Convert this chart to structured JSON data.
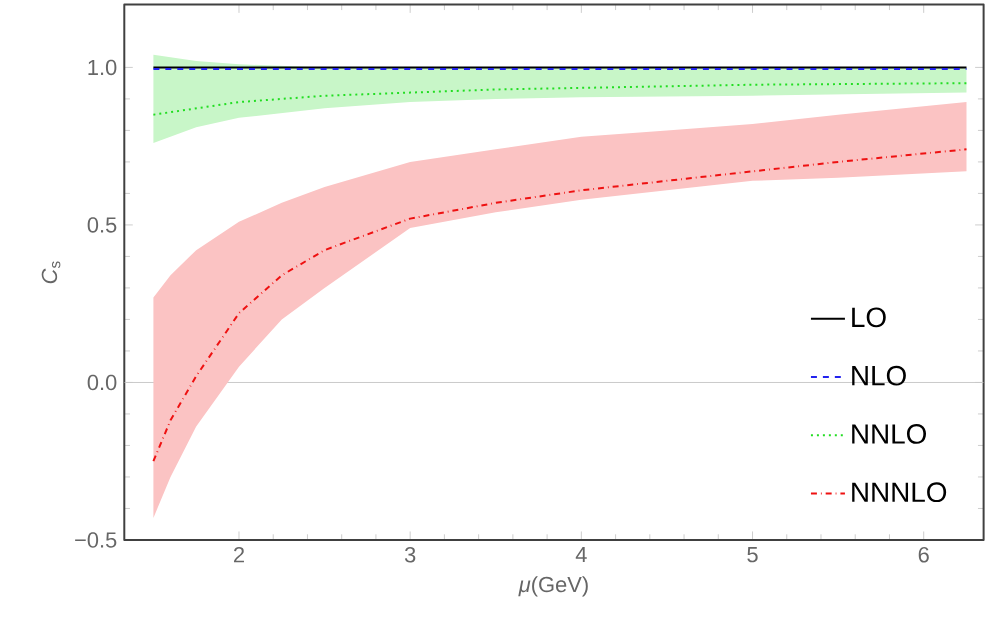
{
  "chart_data": {
    "type": "line",
    "xlabel": "*μ*(GeV)",
    "ylabel": "*C*$_{s}$",
    "xlim": [
      1.33,
      6.35
    ],
    "ylim": [
      -0.5,
      1.2
    ],
    "xticks": [
      2,
      3,
      4,
      5,
      6
    ],
    "yticks": [
      {
        "value": -0.5,
        "label": "−0.5"
      },
      {
        "value": 0,
        "label": "0.0"
      },
      {
        "value": 0.5,
        "label": "0.5"
      },
      {
        "value": 1.0,
        "label": "1.0"
      }
    ],
    "ref_lines": [
      {
        "axis": "y",
        "value": 0,
        "color": "#c8c8c8"
      }
    ],
    "legend": "bottom right",
    "grid": false,
    "series": [
      {
        "name": "LO",
        "color": "#000000",
        "line_style": "solid",
        "x": [
          1.5,
          6.25
        ],
        "values": [
          1.0,
          1.0
        ]
      },
      {
        "name": "NLO",
        "color": "#2222ee",
        "line_style": "dashed",
        "x": [
          1.5,
          6.25
        ],
        "values": [
          0.995,
          0.995
        ]
      },
      {
        "name": "NNLO",
        "color": "#22dd22",
        "line_style": "dotted",
        "x": [
          1.5,
          1.75,
          2,
          2.5,
          3,
          3.5,
          4,
          5,
          6.25
        ],
        "values": [
          0.85,
          0.87,
          0.89,
          0.91,
          0.92,
          0.93,
          0.935,
          0.945,
          0.95
        ],
        "lower": [
          0.76,
          0.81,
          0.84,
          0.87,
          0.89,
          0.9,
          0.905,
          0.91,
          0.92
        ],
        "upper": [
          1.04,
          1.02,
          1.01,
          1.0,
          1.0,
          1.0,
          1.0,
          1.0,
          1.0
        ]
      },
      {
        "name": "NNNLO",
        "color": "#ee1111",
        "line_style": "dashdotted",
        "x": [
          1.5,
          1.6,
          1.75,
          2,
          2.25,
          2.5,
          3,
          3.5,
          4,
          4.5,
          5,
          5.5,
          6.25
        ],
        "values": [
          -0.25,
          -0.12,
          0.02,
          0.22,
          0.34,
          0.42,
          0.52,
          0.57,
          0.61,
          0.64,
          0.67,
          0.7,
          0.74
        ],
        "lower": [
          -0.43,
          -0.3,
          -0.14,
          0.05,
          0.2,
          0.3,
          0.49,
          0.54,
          0.58,
          0.61,
          0.64,
          0.65,
          0.67
        ],
        "upper": [
          0.27,
          0.34,
          0.42,
          0.51,
          0.57,
          0.62,
          0.7,
          0.74,
          0.78,
          0.8,
          0.82,
          0.85,
          0.89
        ]
      }
    ]
  }
}
